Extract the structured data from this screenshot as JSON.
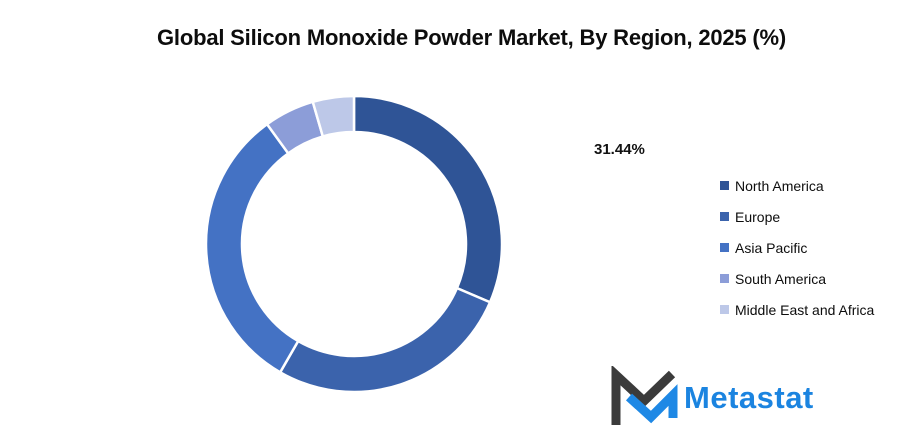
{
  "title": "Global Silicon Monoxide Powder Market, By Region, 2025 (%)",
  "chart_data": {
    "type": "pie",
    "subtype": "donut",
    "title": "Global Silicon Monoxide Powder Market, By Region, 2025 (%)",
    "labels": [
      "North America",
      "Europe",
      "Asia Pacific",
      "South America",
      "Middle East and Africa"
    ],
    "values": [
      31.44,
      26.87,
      31.7,
      5.5,
      4.49
    ],
    "colors": [
      "#2F5496",
      "#3B63AC",
      "#4472C4",
      "#8C9DD8",
      "#BDC8E8"
    ],
    "labeled_segment": {
      "label": "North America",
      "data_label": "31.44%"
    },
    "start_angle_deg": 0,
    "direction": "clockwise",
    "hole_ratio": 0.76,
    "legend_position": "right",
    "segment_border_color": "#FFFFFF"
  },
  "callout": {
    "text": "31.44%"
  },
  "logo": {
    "wordmark": "Metastat",
    "wordmark_color": "#1B84E0",
    "mark_dark_color": "#3B3B3B",
    "mark_blue_color": "#1E88E5"
  }
}
